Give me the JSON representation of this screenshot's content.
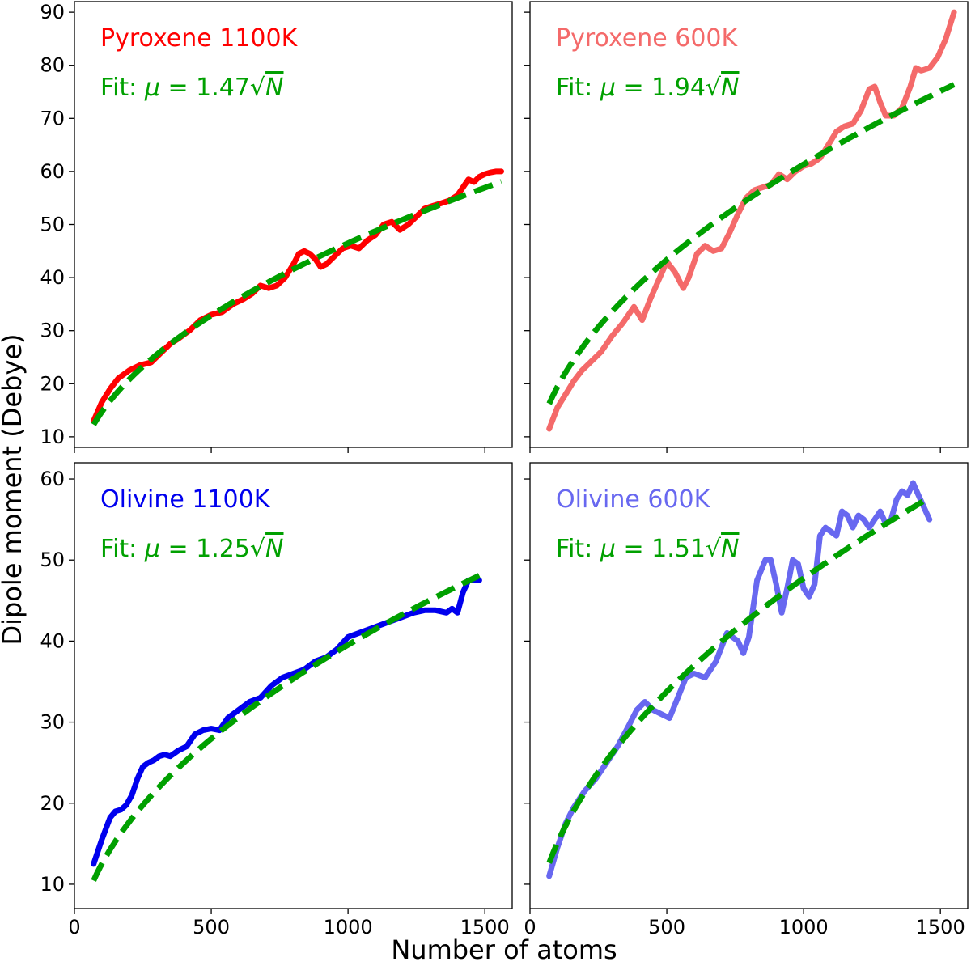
{
  "figure": {
    "ylabel": "Dipole moment (Debye)",
    "xlabel": "Number of atoms"
  },
  "chart_data": [
    {
      "type": "line",
      "title": "Pyroxene 1100K",
      "fit_prefix": "Fit: ",
      "fit_mu": "μ",
      "fit_eq": " = 1.47√",
      "fit_N": "N",
      "fit_coefficient": 1.47,
      "xlim": [
        0,
        1600
      ],
      "ylim": [
        8,
        92
      ],
      "xticks": [
        0,
        500,
        1000,
        1500
      ],
      "xtick_labels": [
        "0",
        "500",
        "1000",
        "1500"
      ],
      "yticks": [
        10,
        20,
        30,
        40,
        50,
        60,
        70,
        80,
        90
      ],
      "ytick_labels": [
        "10",
        "20",
        "30",
        "40",
        "50",
        "60",
        "70",
        "80",
        "90"
      ],
      "show_xtick_labels": false,
      "show_ytick_labels": true,
      "data_color": "#ff0000",
      "fit_color": "#00a000",
      "series": [
        {
          "name": "Pyroxene 1100K",
          "x": [
            70,
            100,
            130,
            160,
            200,
            240,
            280,
            320,
            350,
            380,
            420,
            460,
            500,
            540,
            580,
            620,
            650,
            680,
            710,
            740,
            770,
            800,
            820,
            840,
            860,
            880,
            900,
            920,
            950,
            980,
            1010,
            1040,
            1070,
            1100,
            1130,
            1160,
            1190,
            1220,
            1250,
            1280,
            1310,
            1340,
            1370,
            1400,
            1420,
            1440,
            1460,
            1480,
            1500,
            1520,
            1540,
            1560
          ],
          "y": [
            13.0,
            16.5,
            19.0,
            21.0,
            22.5,
            23.5,
            24.0,
            26.0,
            27.5,
            28.5,
            30.0,
            32.0,
            33.0,
            33.5,
            35.0,
            36.0,
            37.0,
            38.5,
            38.0,
            38.5,
            40.0,
            42.5,
            44.5,
            45.0,
            44.5,
            43.5,
            42.0,
            42.5,
            44.0,
            45.5,
            46.0,
            45.5,
            47.0,
            48.0,
            50.0,
            50.5,
            49.0,
            50.0,
            51.5,
            53.0,
            53.5,
            54.0,
            54.5,
            55.5,
            57.0,
            58.5,
            58.0,
            59.0,
            59.5,
            59.8,
            60.0,
            60.0
          ]
        }
      ]
    },
    {
      "type": "line",
      "title": "Pyroxene 600K",
      "fit_prefix": "Fit: ",
      "fit_mu": "μ",
      "fit_eq": " = 1.94√",
      "fit_N": "N",
      "fit_coefficient": 1.94,
      "xlim": [
        0,
        1600
      ],
      "ylim": [
        8,
        92
      ],
      "xticks": [
        0,
        500,
        1000,
        1500
      ],
      "xtick_labels": [
        "0",
        "500",
        "1000",
        "1500"
      ],
      "yticks": [
        10,
        20,
        30,
        40,
        50,
        60,
        70,
        80,
        90
      ],
      "ytick_labels": [
        "10",
        "20",
        "30",
        "40",
        "50",
        "60",
        "70",
        "80",
        "90"
      ],
      "show_xtick_labels": false,
      "show_ytick_labels": false,
      "data_color": "#f46a6a",
      "fit_color": "#00a000",
      "series": [
        {
          "name": "Pyroxene 600K",
          "x": [
            70,
            100,
            130,
            160,
            190,
            220,
            260,
            300,
            340,
            380,
            410,
            440,
            470,
            500,
            530,
            560,
            580,
            610,
            640,
            670,
            700,
            730,
            760,
            790,
            820,
            850,
            880,
            910,
            940,
            970,
            1000,
            1030,
            1060,
            1090,
            1120,
            1150,
            1180,
            1210,
            1240,
            1260,
            1280,
            1300,
            1330,
            1360,
            1390,
            1410,
            1430,
            1460,
            1490,
            1520,
            1550
          ],
          "y": [
            11.5,
            15.5,
            18.0,
            20.5,
            22.5,
            24.0,
            26.0,
            29.0,
            31.5,
            34.5,
            32.0,
            36.0,
            39.5,
            43.0,
            41.0,
            38.0,
            40.0,
            44.5,
            46.0,
            45.0,
            45.5,
            48.5,
            52.0,
            55.0,
            56.5,
            57.0,
            57.5,
            59.5,
            58.5,
            60.0,
            61.0,
            61.5,
            62.5,
            65.0,
            67.5,
            68.5,
            69.0,
            71.5,
            75.5,
            76.0,
            73.0,
            70.5,
            70.5,
            72.0,
            76.0,
            79.5,
            79.0,
            79.5,
            81.5,
            85.0,
            90.0
          ]
        }
      ]
    },
    {
      "type": "line",
      "title": "Olivine 1100K",
      "fit_prefix": "Fit: ",
      "fit_mu": "μ",
      "fit_eq": " = 1.25√",
      "fit_N": "N",
      "fit_coefficient": 1.25,
      "xlim": [
        0,
        1600
      ],
      "ylim": [
        7,
        62
      ],
      "xticks": [
        0,
        500,
        1000,
        1500
      ],
      "xtick_labels": [
        "0",
        "500",
        "1000",
        "1500"
      ],
      "yticks": [
        10,
        20,
        30,
        40,
        50,
        60
      ],
      "ytick_labels": [
        "10",
        "20",
        "30",
        "40",
        "50",
        "60"
      ],
      "show_xtick_labels": true,
      "show_ytick_labels": true,
      "data_color": "#0000ee",
      "fit_color": "#00a000",
      "series": [
        {
          "name": "Olivine 1100K",
          "x": [
            70,
            100,
            130,
            150,
            170,
            190,
            210,
            230,
            250,
            270,
            290,
            310,
            330,
            350,
            380,
            410,
            440,
            470,
            500,
            530,
            560,
            600,
            640,
            680,
            720,
            760,
            800,
            840,
            880,
            920,
            960,
            1000,
            1040,
            1080,
            1120,
            1160,
            1200,
            1240,
            1280,
            1320,
            1360,
            1380,
            1400,
            1420,
            1440,
            1460,
            1480
          ],
          "y": [
            12.5,
            15.5,
            18.2,
            19.0,
            19.2,
            19.8,
            21.0,
            23.0,
            24.5,
            25.0,
            25.3,
            25.8,
            26.0,
            25.8,
            26.5,
            27.0,
            28.5,
            29.0,
            29.2,
            29.0,
            30.5,
            31.5,
            32.5,
            33.0,
            34.5,
            35.5,
            36.0,
            36.5,
            37.5,
            38.0,
            39.0,
            40.5,
            41.0,
            41.5,
            42.0,
            42.5,
            43.0,
            43.5,
            43.8,
            43.8,
            43.5,
            44.0,
            43.5,
            46.0,
            47.5,
            47.5,
            47.5
          ]
        }
      ]
    },
    {
      "type": "line",
      "title": "Olivine 600K",
      "fit_prefix": "Fit: ",
      "fit_mu": "μ",
      "fit_eq": " = 1.51√",
      "fit_N": "N",
      "fit_coefficient": 1.51,
      "xlim": [
        0,
        1600
      ],
      "ylim": [
        7,
        62
      ],
      "xticks": [
        0,
        500,
        1000,
        1500
      ],
      "xtick_labels": [
        "0",
        "500",
        "1000",
        "1500"
      ],
      "yticks": [
        10,
        20,
        30,
        40,
        50,
        60
      ],
      "ytick_labels": [
        "10",
        "20",
        "30",
        "40",
        "50",
        "60"
      ],
      "show_xtick_labels": true,
      "show_ytick_labels": false,
      "data_color": "#6868f0",
      "fit_color": "#00a000",
      "series": [
        {
          "name": "Olivine 600K",
          "x": [
            70,
            100,
            130,
            160,
            200,
            240,
            280,
            320,
            360,
            390,
            420,
            450,
            480,
            510,
            540,
            570,
            600,
            640,
            680,
            720,
            760,
            780,
            800,
            830,
            860,
            880,
            900,
            920,
            940,
            960,
            980,
            1000,
            1020,
            1040,
            1060,
            1080,
            1100,
            1120,
            1140,
            1160,
            1180,
            1200,
            1220,
            1240,
            1260,
            1280,
            1300,
            1320,
            1340,
            1360,
            1380,
            1400,
            1420,
            1440,
            1460
          ],
          "y": [
            11.0,
            14.5,
            17.5,
            19.5,
            21.5,
            23.0,
            25.0,
            27.0,
            29.5,
            31.5,
            32.5,
            31.5,
            31.0,
            30.5,
            33.0,
            35.5,
            36.0,
            35.5,
            37.5,
            41.0,
            40.0,
            38.5,
            40.5,
            47.5,
            50.0,
            50.0,
            47.0,
            43.5,
            46.5,
            50.0,
            49.5,
            46.5,
            45.5,
            47.0,
            53.0,
            54.0,
            53.5,
            53.0,
            56.0,
            55.5,
            54.0,
            55.5,
            55.0,
            54.0,
            55.0,
            56.0,
            54.5,
            55.0,
            57.5,
            58.5,
            58.0,
            59.5,
            58.0,
            56.5,
            55.0
          ]
        }
      ]
    }
  ]
}
